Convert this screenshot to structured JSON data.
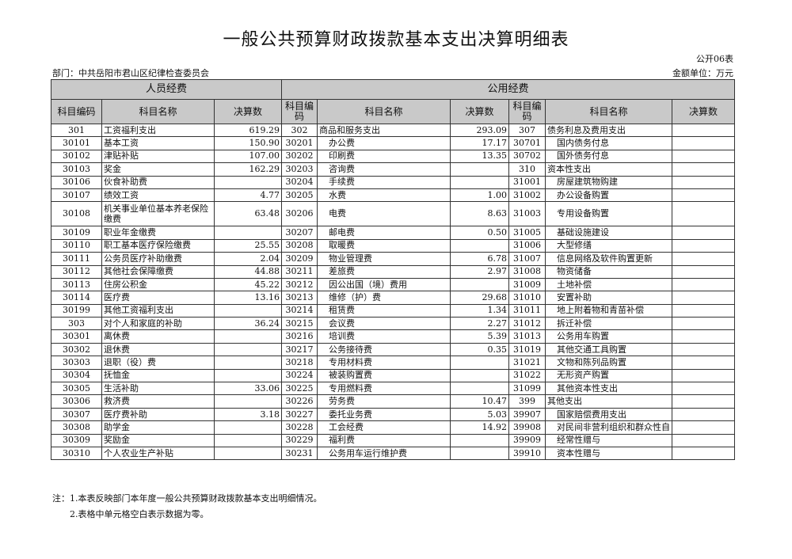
{
  "title": "一般公共预算财政拨款基本支出决算明细表",
  "form_no": "公开06表",
  "department": "部门：中共岳阳市君山区纪律检查委员会",
  "unit": "金额单位：万元",
  "groups": {
    "personnel": "人员经费",
    "public": "公用经费"
  },
  "headers": {
    "code": "科目编码",
    "name": "科目名称",
    "amount": "决算数"
  },
  "rows": [
    [
      [
        "301",
        "工资福利支出",
        "619.29"
      ],
      [
        "302",
        "商品和服务支出",
        "293.09"
      ],
      [
        "307",
        "债务利息及费用支出",
        ""
      ]
    ],
    [
      [
        "30101",
        "基本工资",
        "150.90"
      ],
      [
        "30201",
        "办公费",
        "17.17"
      ],
      [
        "30701",
        "国内债务付息",
        ""
      ]
    ],
    [
      [
        "30102",
        "津贴补贴",
        "107.00"
      ],
      [
        "30202",
        "印刷费",
        "13.35"
      ],
      [
        "30702",
        "国外债务付息",
        ""
      ]
    ],
    [
      [
        "30103",
        "奖金",
        "162.29"
      ],
      [
        "30203",
        "咨询费",
        ""
      ],
      [
        "310",
        "资本性支出",
        ""
      ]
    ],
    [
      [
        "30106",
        "伙食补助费",
        ""
      ],
      [
        "30204",
        "手续费",
        ""
      ],
      [
        "31001",
        "房屋建筑物购建",
        ""
      ]
    ],
    [
      [
        "30107",
        "绩效工资",
        "4.77"
      ],
      [
        "30205",
        "水费",
        "1.00"
      ],
      [
        "31002",
        "办公设备购置",
        ""
      ]
    ],
    [
      [
        "30108",
        "机关事业单位基本养老保险缴费",
        "63.48"
      ],
      [
        "30206",
        "电费",
        "8.63"
      ],
      [
        "31003",
        "专用设备购置",
        ""
      ]
    ],
    [
      [
        "30109",
        "职业年金缴费",
        ""
      ],
      [
        "30207",
        "邮电费",
        "0.50"
      ],
      [
        "31005",
        "基础设施建设",
        ""
      ]
    ],
    [
      [
        "30110",
        "职工基本医疗保险缴费",
        "25.55"
      ],
      [
        "30208",
        "取暖费",
        ""
      ],
      [
        "31006",
        "大型修缮",
        ""
      ]
    ],
    [
      [
        "30111",
        "公务员医疗补助缴费",
        "2.04"
      ],
      [
        "30209",
        "物业管理费",
        "6.78"
      ],
      [
        "31007",
        "信息网络及软件购置更新",
        ""
      ]
    ],
    [
      [
        "30112",
        "其他社会保障缴费",
        "44.88"
      ],
      [
        "30211",
        "差旅费",
        "2.97"
      ],
      [
        "31008",
        "物资储备",
        ""
      ]
    ],
    [
      [
        "30113",
        "住房公积金",
        "45.22"
      ],
      [
        "30212",
        "因公出国（境）费用",
        ""
      ],
      [
        "31009",
        "土地补偿",
        ""
      ]
    ],
    [
      [
        "30114",
        "医疗费",
        "13.16"
      ],
      [
        "30213",
        "维修（护）费",
        "29.68"
      ],
      [
        "31010",
        "安置补助",
        ""
      ]
    ],
    [
      [
        "30199",
        "其他工资福利支出",
        ""
      ],
      [
        "30214",
        "租赁费",
        "1.34"
      ],
      [
        "31011",
        "地上附着物和青苗补偿",
        ""
      ]
    ],
    [
      [
        "303",
        "对个人和家庭的补助",
        "36.24"
      ],
      [
        "30215",
        "会议费",
        "2.27"
      ],
      [
        "31012",
        "拆迁补偿",
        ""
      ]
    ],
    [
      [
        "30301",
        "离休费",
        ""
      ],
      [
        "30216",
        "培训费",
        "5.39"
      ],
      [
        "31013",
        "公务用车购置",
        ""
      ]
    ],
    [
      [
        "30302",
        "退休费",
        ""
      ],
      [
        "30217",
        "公务接待费",
        "0.35"
      ],
      [
        "31019",
        "其他交通工具购置",
        ""
      ]
    ],
    [
      [
        "30303",
        "退职（役）费",
        ""
      ],
      [
        "30218",
        "专用材料费",
        ""
      ],
      [
        "31021",
        "文物和陈列品购置",
        ""
      ]
    ],
    [
      [
        "30304",
        "抚恤金",
        ""
      ],
      [
        "30224",
        "被装购置费",
        ""
      ],
      [
        "31022",
        "无形资产购置",
        ""
      ]
    ],
    [
      [
        "30305",
        "生活补助",
        "33.06"
      ],
      [
        "30225",
        "专用燃料费",
        ""
      ],
      [
        "31099",
        "其他资本性支出",
        ""
      ]
    ],
    [
      [
        "30306",
        "救济费",
        ""
      ],
      [
        "30226",
        "劳务费",
        "10.47"
      ],
      [
        "399",
        "其他支出",
        ""
      ]
    ],
    [
      [
        "30307",
        "医疗费补助",
        "3.18"
      ],
      [
        "30227",
        "委托业务费",
        "5.03"
      ],
      [
        "39907",
        "国家赔偿费用支出",
        ""
      ]
    ],
    [
      [
        "30308",
        "助学金",
        ""
      ],
      [
        "30228",
        "工会经费",
        "14.92"
      ],
      [
        "39908",
        "对民间非营利组织和群众性自",
        ""
      ]
    ],
    [
      [
        "30309",
        "奖励金",
        ""
      ],
      [
        "30229",
        "福利费",
        ""
      ],
      [
        "39909",
        "经常性赠与",
        ""
      ]
    ],
    [
      [
        "30310",
        "个人农业生产补贴",
        ""
      ],
      [
        "30231",
        "公务用车运行维护费",
        ""
      ],
      [
        "39910",
        "资本性赠与",
        ""
      ]
    ]
  ],
  "notes": [
    "注：1.本表反映部门本年度一般公共预算财政拨款基本支出明细情况。",
    "2.表格中单元格空白表示数据为零。"
  ],
  "colors": {
    "header_bg": "#c9c9c9",
    "border": "#333333"
  }
}
